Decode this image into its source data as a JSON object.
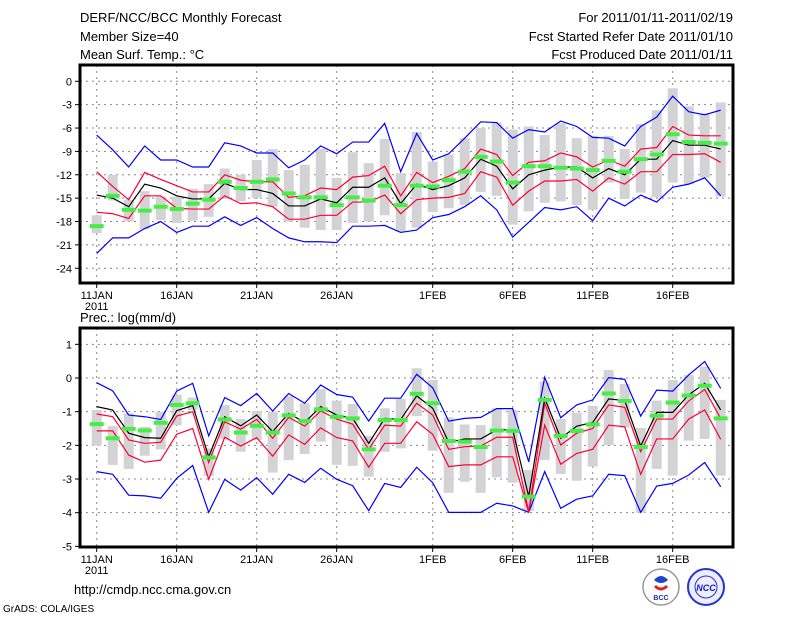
{
  "header": {
    "title": "DERF/NCC/BCC Monthly Forecast",
    "member_size": "Member Size=40",
    "variable": "Mean Surf. Temp.: °C",
    "period": "For 2011/01/11-2011/02/19",
    "refer_date": "Fcst Started Refer Date 2011/01/10",
    "produced_date": "Fcst Produced Date 2011/01/11"
  },
  "footer": {
    "url": "http://cmdp.ncc.cma.gov.cn",
    "credit": "GrADS: COLA/IGES",
    "logo_bcc": "BCC",
    "logo_ncc": "NCC"
  },
  "colors": {
    "outer": "#0000ff",
    "inner": "#ff0033",
    "mean": "#000000",
    "observed": "#44ee44",
    "spread": "#d3d3d6",
    "grid": "#888888"
  },
  "chart_data": [
    {
      "type": "line",
      "title": "Mean Surf. Temp.: °C",
      "ylabel": "",
      "ylim": [
        -26,
        2
      ],
      "yticks": [
        0,
        -3,
        -6,
        -9,
        -12,
        -15,
        -18,
        -21,
        -24
      ],
      "x_days": 40,
      "xticks": [
        {
          "day": 0,
          "label": "11JAN",
          "sub": "2011"
        },
        {
          "day": 5,
          "label": "16JAN"
        },
        {
          "day": 10,
          "label": "21JAN"
        },
        {
          "day": 15,
          "label": "26JAN"
        },
        {
          "day": 21,
          "label": "1FEB"
        },
        {
          "day": 26,
          "label": "6FEB"
        },
        {
          "day": 31,
          "label": "11FEB"
        },
        {
          "day": 36,
          "label": "16FEB"
        }
      ],
      "grid": true,
      "series": {
        "outer_upper": [
          -6.9,
          -8.8,
          -11,
          -8.3,
          -10.1,
          -10.1,
          -11,
          -11,
          -7.9,
          -8.3,
          -9.2,
          -9.2,
          -11.1,
          -10.1,
          -8.3,
          -9.3,
          -7.8,
          -7.8,
          -5.4,
          -11.6,
          -6.7,
          -10.1,
          -9.3,
          -7.3,
          -5.2,
          -5.3,
          -7.3,
          -6.2,
          -6.5,
          -5.1,
          -5.8,
          -7.2,
          -7.3,
          -8.3,
          -5.8,
          -4.6,
          -1.9,
          -3.9,
          -4.3,
          -3.7
        ],
        "outer_lower": [
          -22.1,
          -20.1,
          -20.1,
          -18.9,
          -18,
          -19.4,
          -18.6,
          -18.6,
          -17.4,
          -18.5,
          -17.5,
          -18.9,
          -20.1,
          -20.6,
          -20.6,
          -20.7,
          -18.6,
          -18.6,
          -18.5,
          -19.4,
          -19.1,
          -17.5,
          -17.1,
          -16.1,
          -14.7,
          -16.5,
          -20,
          -18.1,
          -16.2,
          -16.5,
          -16.1,
          -17.9,
          -15,
          -16,
          -14.6,
          -15.5,
          -13.6,
          -13.2,
          -12.4,
          -14.7
        ],
        "inner_upper": [
          -11.6,
          -13.5,
          -15.2,
          -11.7,
          -12.6,
          -13.4,
          -14.2,
          -14.2,
          -12,
          -12.7,
          -12.9,
          -12.9,
          -14.9,
          -14.7,
          -13.7,
          -13.9,
          -12.3,
          -12.1,
          -10.9,
          -14.7,
          -11.7,
          -13,
          -12.2,
          -11.2,
          -8.7,
          -9.4,
          -12.1,
          -10.4,
          -10.2,
          -9.2,
          -9.7,
          -11,
          -10.1,
          -10.9,
          -8.7,
          -8.5,
          -5.8,
          -6.9,
          -7,
          -7
        ],
        "inner_lower": [
          -16.8,
          -17,
          -17.6,
          -14.7,
          -14.7,
          -16.3,
          -16.4,
          -16.4,
          -14.7,
          -15.7,
          -15.6,
          -16.1,
          -17.7,
          -17.7,
          -17.2,
          -17.2,
          -15.5,
          -15.5,
          -14.6,
          -17,
          -15.2,
          -15,
          -14.9,
          -14.4,
          -11.6,
          -12.3,
          -15.9,
          -14.1,
          -12.8,
          -12.8,
          -12.6,
          -14.1,
          -12.4,
          -13.2,
          -11.6,
          -11.6,
          -9.4,
          -9.4,
          -9.3,
          -10.4
        ],
        "mean": [
          -14.6,
          -15,
          -16.1,
          -13.2,
          -13.7,
          -14.7,
          -15.1,
          -15.1,
          -13.1,
          -13.9,
          -13.9,
          -14.4,
          -16,
          -16,
          -15.1,
          -15.6,
          -13.6,
          -13.6,
          -12.4,
          -15.7,
          -13.2,
          -13.9,
          -13.4,
          -12.4,
          -10,
          -10.9,
          -13.8,
          -12,
          -11.4,
          -11,
          -11,
          -12.4,
          -11.2,
          -12,
          -10,
          -10,
          -7.6,
          -8.2,
          -8.2,
          -8.7
        ],
        "observed": [
          -18.6,
          -14.7,
          -16.5,
          -16.6,
          -16.1,
          -16.4,
          -15.7,
          -15.2,
          -12.9,
          -13.7,
          -12.9,
          -12.6,
          -14.4,
          -14.9,
          -14.9,
          -15.9,
          -14.9,
          -15.3,
          -13.4,
          -15.9,
          -13.4,
          -13.5,
          -12.7,
          -11.6,
          -9.7,
          -10.3,
          -13,
          -10.9,
          -10.9,
          -11.1,
          -11.2,
          -11.4,
          -10.2,
          -11.6,
          -10,
          -9.4,
          -6.8,
          -7.8,
          -7.9,
          -8
        ],
        "spread_high": [
          -17.2,
          -12,
          -15.2,
          -14.1,
          -14.8,
          -14.8,
          -13.8,
          -13.2,
          -11.2,
          -12,
          -10.1,
          -8.7,
          -11.4,
          -10.7,
          -8.7,
          -12.4,
          -9.1,
          -10.5,
          -7.4,
          -11.8,
          -6.5,
          -10.3,
          -9.4,
          -7.3,
          -6,
          -5.3,
          -6.2,
          -5.8,
          -6.9,
          -5.4,
          -7.3,
          -7,
          -7,
          -8.7,
          -5.5,
          -3.7,
          -0.9,
          -3.2,
          -4.1,
          -2.7
        ],
        "spread_low": [
          -19.5,
          -15.3,
          -18,
          -19,
          -17.8,
          -18.2,
          -17.9,
          -17.4,
          -15.1,
          -15.4,
          -15,
          -16.1,
          -18,
          -18.8,
          -19.1,
          -19.1,
          -18.2,
          -18,
          -17.2,
          -19.3,
          -18.8,
          -16.8,
          -16.3,
          -15.9,
          -14.2,
          -14.7,
          -18.4,
          -16.7,
          -15.6,
          -15.4,
          -15.9,
          -16.5,
          -13,
          -15.1,
          -14.3,
          -14.9,
          -13,
          -13.2,
          -12.4,
          -14.8
        ]
      }
    },
    {
      "type": "line",
      "title": "Prec.: log(mm/d)",
      "ylabel": "",
      "ylim": [
        -5,
        1.5
      ],
      "yticks": [
        1,
        0,
        -1,
        -2,
        -3,
        -4,
        -5
      ],
      "x_days": 40,
      "xticks": [
        {
          "day": 0,
          "label": "11JAN",
          "sub": "2011"
        },
        {
          "day": 5,
          "label": "16JAN"
        },
        {
          "day": 10,
          "label": "21JAN"
        },
        {
          "day": 15,
          "label": "26JAN"
        },
        {
          "day": 21,
          "label": "1FEB"
        },
        {
          "day": 26,
          "label": "6FEB"
        },
        {
          "day": 31,
          "label": "11FEB"
        },
        {
          "day": 36,
          "label": "16FEB"
        }
      ],
      "grid": true,
      "series": {
        "outer_upper": [
          -0.14,
          -0.38,
          -1.1,
          -1.15,
          -1.23,
          -0.39,
          -0.16,
          -1.72,
          -0.58,
          -0.82,
          -0.46,
          -0.98,
          -0.46,
          -0.75,
          -0.21,
          -0.49,
          -0.57,
          -1.28,
          -0.6,
          -0.6,
          0.11,
          -0.29,
          -1.28,
          -1.2,
          -1.17,
          -0.91,
          -0.91,
          -2.49,
          0.02,
          -1.18,
          -0.8,
          -0.65,
          0.01,
          -0.04,
          -1.13,
          -0.36,
          -0.39,
          0.09,
          0.49,
          -0.31
        ],
        "outer_lower": [
          -2.78,
          -2.86,
          -3.48,
          -3.5,
          -3.57,
          -2.98,
          -2.6,
          -3.99,
          -3.01,
          -3.33,
          -2.96,
          -3.45,
          -2.86,
          -3.1,
          -2.68,
          -3.01,
          -3.2,
          -3.94,
          -3.13,
          -3.25,
          -2.65,
          -3.11,
          -3.99,
          -3.99,
          -3.99,
          -3.72,
          -3.8,
          -3.99,
          -2.78,
          -3.87,
          -3.6,
          -3.5,
          -2.86,
          -2.9,
          -3.99,
          -3.21,
          -3.13,
          -2.88,
          -2.51,
          -3.23
        ],
        "inner_upper": [
          -1.07,
          -1.15,
          -1.84,
          -1.94,
          -1.91,
          -1.13,
          -1,
          -2.51,
          -1.3,
          -1.52,
          -1.23,
          -1.79,
          -1.17,
          -1.43,
          -0.98,
          -1.22,
          -1.37,
          -2.12,
          -1.4,
          -1.43,
          -0.75,
          -1.1,
          -2.12,
          -2.04,
          -2.02,
          -1.76,
          -1.76,
          -3.97,
          -0.75,
          -1.99,
          -1.64,
          -1.5,
          -0.8,
          -0.87,
          -2.19,
          -1.22,
          -1.22,
          -0.68,
          -0.34,
          -1.2
        ],
        "inner_lower": [
          -1.57,
          -1.57,
          -2.29,
          -2.5,
          -2.44,
          -1.67,
          -1.5,
          -3.01,
          -1.76,
          -2.02,
          -1.77,
          -2.32,
          -1.69,
          -1.97,
          -1.48,
          -1.77,
          -1.87,
          -2.65,
          -1.94,
          -1.94,
          -1.3,
          -1.67,
          -2.63,
          -2.58,
          -2.58,
          -2.34,
          -2.34,
          -3.99,
          -1.4,
          -2.56,
          -2.24,
          -2.12,
          -1.4,
          -1.45,
          -2.86,
          -1.81,
          -1.81,
          -1.22,
          -0.95,
          -1.82
        ],
        "mean": [
          -0.85,
          -0.95,
          -1.64,
          -1.77,
          -1.79,
          -0.97,
          -0.82,
          -2.34,
          -1.15,
          -1.42,
          -1.1,
          -1.59,
          -1.05,
          -1.32,
          -0.85,
          -1.1,
          -1.2,
          -1.94,
          -1.2,
          -1.23,
          -0.53,
          -0.9,
          -1.91,
          -1.81,
          -1.81,
          -1.54,
          -1.54,
          -3.52,
          -0.6,
          -1.79,
          -1.43,
          -1.32,
          -0.62,
          -0.67,
          -2.02,
          -1.02,
          -1.02,
          -0.5,
          -0.16,
          -0.95
        ],
        "observed": [
          -1.37,
          -1.79,
          -1.51,
          -1.56,
          -1.33,
          -0.8,
          -0.75,
          -2.36,
          -1.23,
          -1.62,
          -1.42,
          -1.62,
          -1.11,
          -1.28,
          -0.93,
          -1.15,
          -1.2,
          -2.12,
          -1.25,
          -1.25,
          -0.47,
          -0.75,
          -1.87,
          -1.89,
          -2.05,
          -1.56,
          -1.57,
          -3.52,
          -0.65,
          -1.72,
          -1.57,
          -1.38,
          -0.46,
          -0.68,
          -2.05,
          -1.12,
          -0.73,
          -0.52,
          -0.23,
          -1.2
        ],
        "spread_high": [
          -0.95,
          -1.43,
          -1.05,
          -1.45,
          -1,
          -0.5,
          -0.58,
          -2.09,
          -0.8,
          -1.22,
          -0.98,
          -1,
          -0.53,
          -0.75,
          -0.33,
          -0.67,
          -0.77,
          -1.72,
          -0.9,
          -0.62,
          0.29,
          -0.06,
          -1.17,
          -1.38,
          -1.4,
          -0.9,
          -0.95,
          -2.73,
          -0.11,
          -1.22,
          -1.03,
          -0.83,
          0.24,
          -0.18,
          -1.48,
          -0.67,
          -0.06,
          0.09,
          0.34,
          -0.65
        ],
        "spread_low": [
          -2.01,
          -2.58,
          -2.7,
          -2.31,
          -2.12,
          -1.4,
          -0.95,
          -2.91,
          -1.82,
          -2.19,
          -1.84,
          -2.81,
          -2.44,
          -2.26,
          -1.89,
          -2.58,
          -2.61,
          -2.93,
          -2.19,
          -2.09,
          -1.13,
          -2.16,
          -3.41,
          -3.08,
          -3.41,
          -2.95,
          -3.11,
          -3.95,
          -2.44,
          -2.85,
          -3.05,
          -2.63,
          -1.99,
          -1.47,
          -4,
          -2.7,
          -2.9,
          -1.86,
          -1.81,
          -2.9
        ]
      }
    }
  ]
}
